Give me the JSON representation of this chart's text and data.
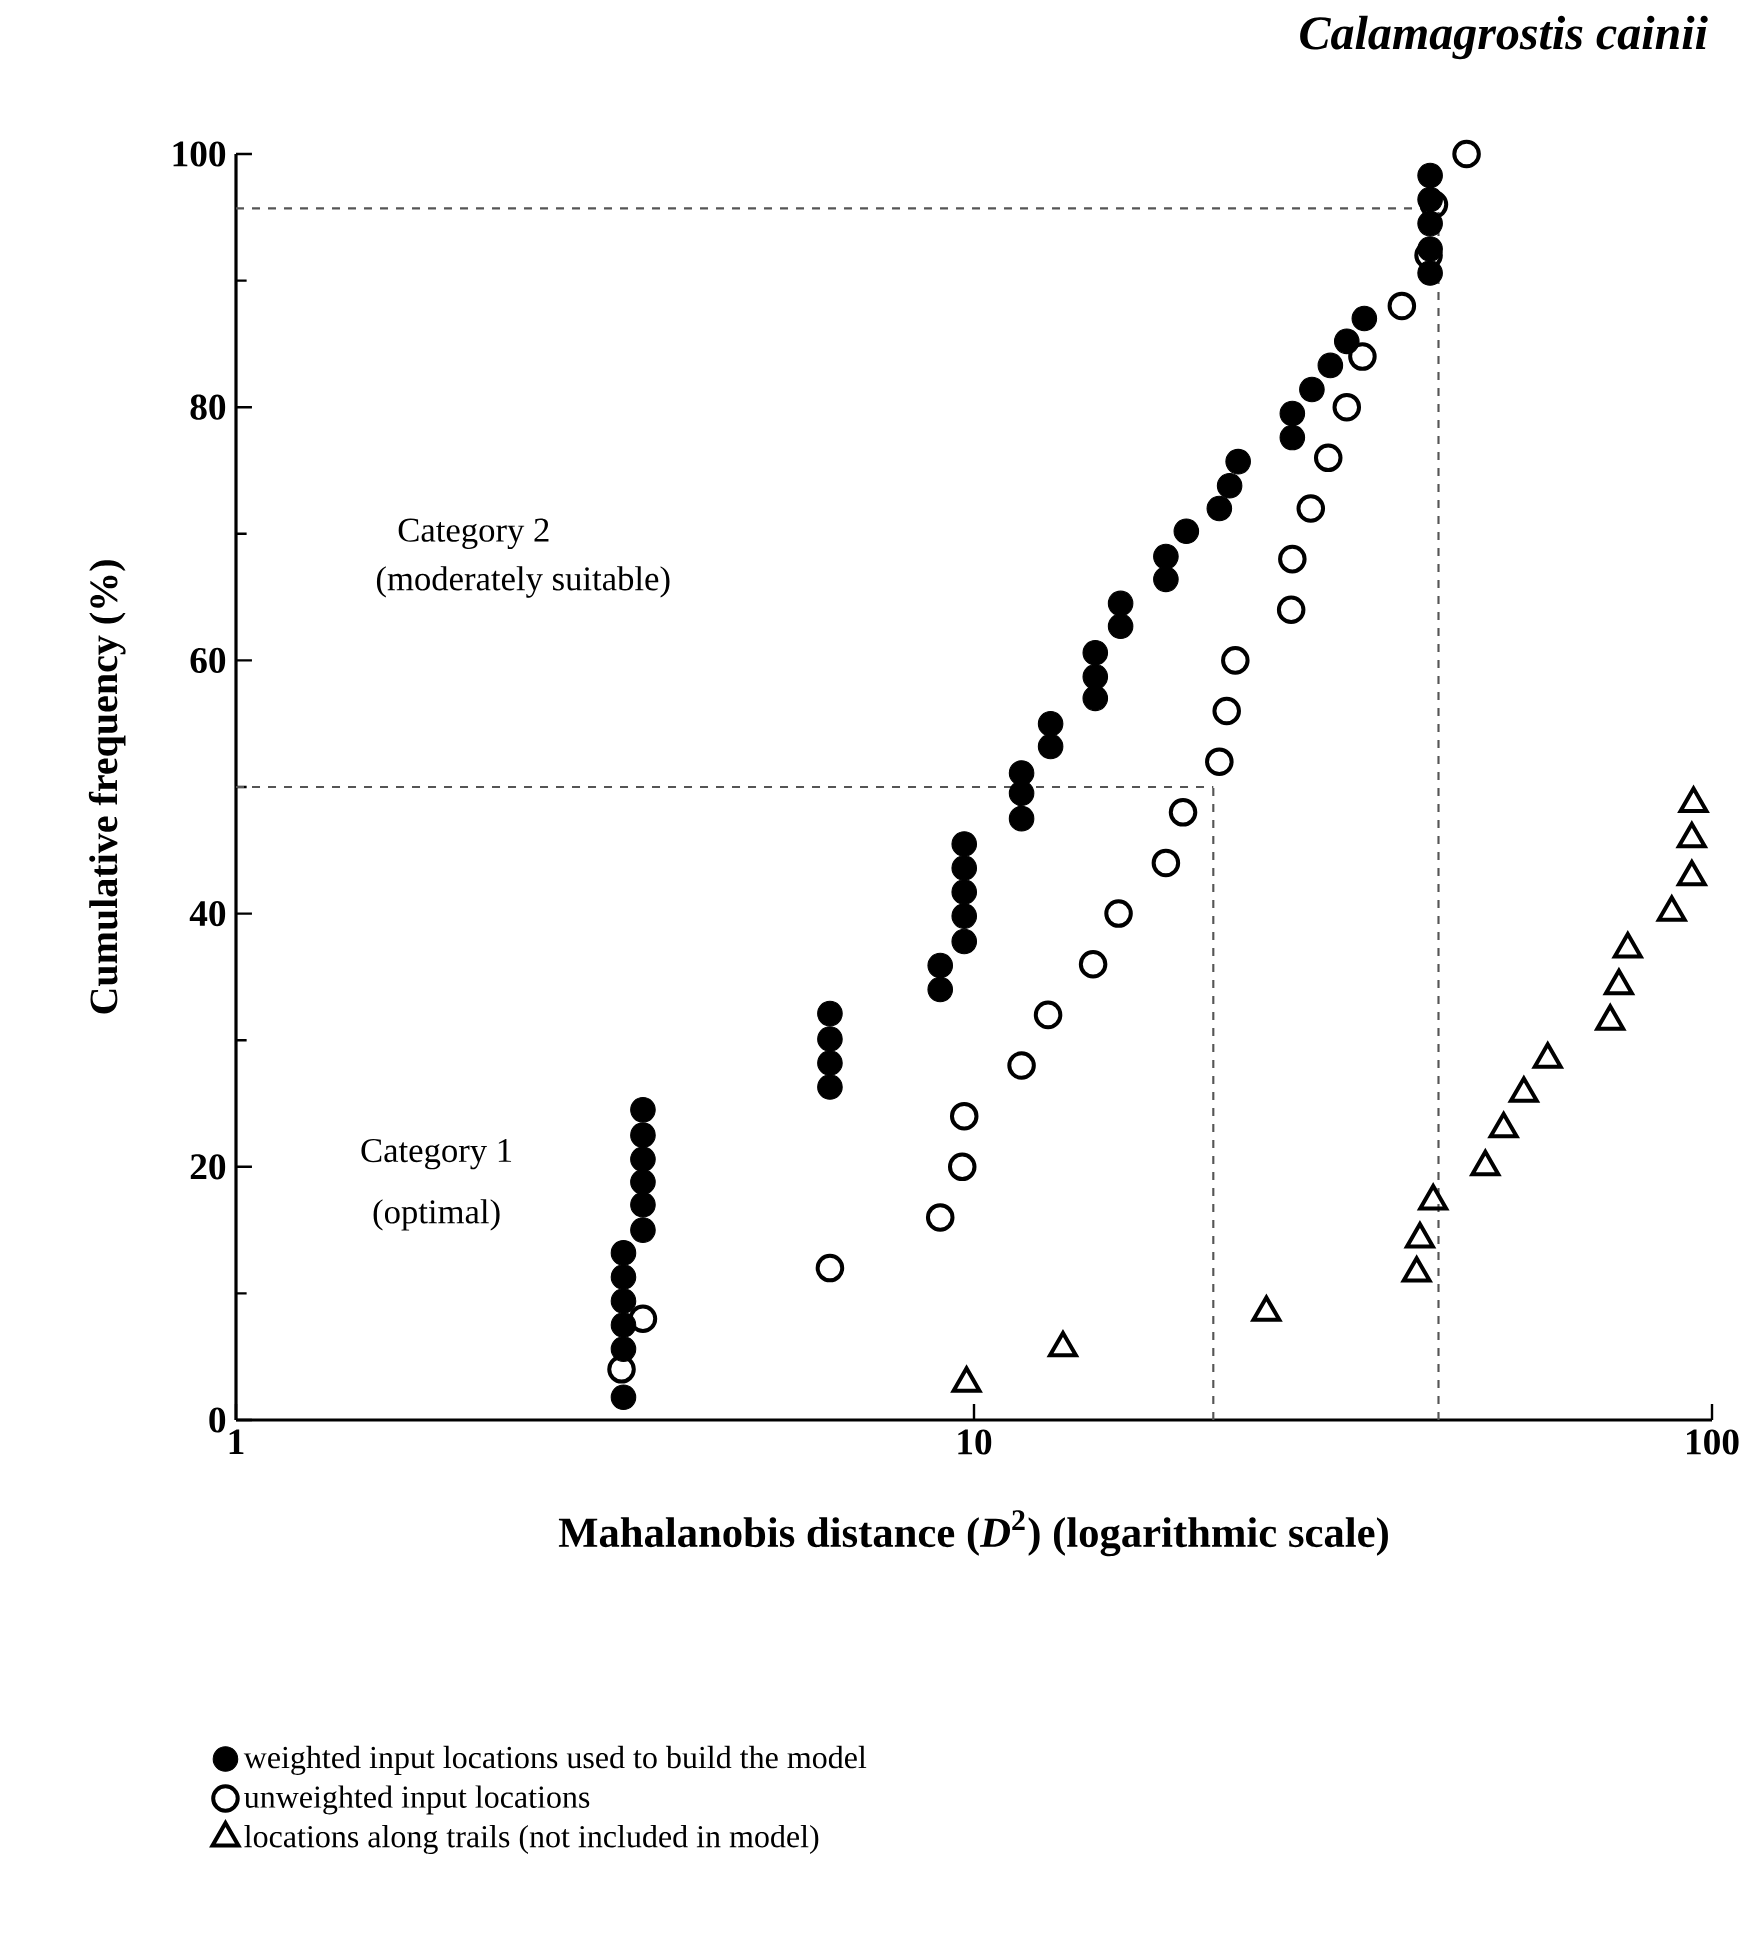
{
  "chart_data": {
    "type": "scatter",
    "title": "*Calamagrostis cainii*",
    "xlabel": "Mahalanobis distance (*D*$^{2}$) (logarithmic scale)",
    "ylabel": "Cumulative frequency (%)",
    "annotations": [
      "Category 2",
      "(moderately suitable)",
      "Category 1",
      "(optimal)"
    ],
    "log": "x",
    "xlim": [
      1,
      100
    ],
    "xticks": [
      1,
      10,
      100
    ],
    "ylim": [
      0,
      100
    ],
    "yticks": [
      0,
      20,
      40,
      60,
      80,
      100
    ],
    "legend": "bottom",
    "grid": false,
    "ref_lines": [
      {
        "axis": "y",
        "value": 50,
        "line_style": "dashed",
        "color": "#555555"
      },
      {
        "axis": "x",
        "value": 21.1,
        "line_style": "dashed",
        "color": "#555555"
      },
      {
        "axis": "y",
        "value": 95.7,
        "line_style": "dashed",
        "color": "#555555"
      },
      {
        "axis": "x",
        "value": 42.6,
        "line_style": "dashed",
        "color": "#555555"
      }
    ],
    "series": [
      {
        "name": "weighted input locations used to build the model",
        "color": "#000000",
        "marker": "circle",
        "x": [
          3.35,
          3.35,
          3.35,
          3.35,
          3.35,
          3.35,
          3.56,
          3.56,
          3.56,
          3.56,
          3.56,
          3.56,
          6.38,
          6.38,
          6.38,
          6.38,
          9.0,
          9.0,
          9.7,
          9.7,
          9.7,
          9.7,
          9.7,
          11.6,
          11.6,
          11.6,
          12.7,
          12.7,
          14.6,
          14.6,
          14.6,
          15.8,
          15.8,
          18.2,
          18.2,
          19.4,
          21.5,
          22.2,
          22.8,
          27.0,
          27.0,
          28.7,
          30.4,
          32.0,
          33.8,
          41.5,
          41.5,
          41.5,
          41.5,
          41.5
        ],
        "values": [
          1.8,
          5.6,
          7.5,
          9.4,
          11.3,
          13.2,
          15.0,
          17.0,
          18.8,
          20.6,
          22.5,
          24.5,
          26.3,
          28.2,
          30.1,
          32.1,
          34.0,
          35.9,
          37.8,
          39.8,
          41.7,
          43.6,
          45.5,
          47.5,
          49.5,
          51.1,
          53.2,
          55.0,
          57.0,
          58.7,
          60.6,
          62.7,
          64.5,
          66.4,
          68.2,
          70.2,
          72.0,
          73.8,
          75.7,
          77.6,
          79.5,
          81.4,
          83.3,
          85.2,
          87.0,
          90.6,
          92.5,
          94.5,
          96.4,
          98.3
        ]
      },
      {
        "name": "unweighted input locations",
        "color": "#000000",
        "marker": "circle",
        "x": [
          3.33,
          3.56,
          6.38,
          9.0,
          9.64,
          9.7,
          11.6,
          12.6,
          14.5,
          15.7,
          18.2,
          19.2,
          21.5,
          22.0,
          22.6,
          26.9,
          27.0,
          28.6,
          30.2,
          32.0,
          33.6,
          38.0,
          41.3,
          42.0,
          46.5
        ],
        "values": [
          4,
          8,
          12,
          16,
          20,
          24,
          28,
          32,
          36,
          40,
          44,
          48,
          52,
          56,
          60,
          64,
          68,
          72,
          76,
          80,
          84,
          88,
          92,
          96,
          100
        ]
      },
      {
        "name": "locations along trails (not included in model)",
        "color": "#000000",
        "marker": "triangle",
        "x": [
          9.77,
          13.2,
          24.9,
          39.8,
          40.2,
          41.9,
          49.3,
          52.2,
          55.6,
          59.9,
          72.8,
          74.8,
          76.9,
          88.2,
          93.9,
          93.9,
          94.4
        ],
        "values": [
          2.9,
          5.7,
          8.5,
          11.6,
          14.3,
          17.3,
          20.0,
          23.0,
          25.8,
          28.5,
          31.5,
          34.3,
          37.2,
          40.1,
          42.9,
          45.9,
          48.7
        ]
      }
    ]
  }
}
